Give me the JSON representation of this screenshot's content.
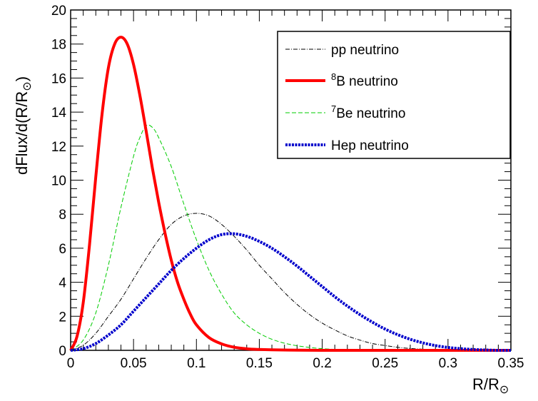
{
  "chart_data": {
    "type": "line",
    "xlabel": {
      "text": "R/R",
      "sub": "⊙"
    },
    "ylabel": {
      "text": "dFlux/d(R/R",
      "sub": "⊙",
      "suffix": ")"
    },
    "xlim": [
      0,
      0.35
    ],
    "ylim": [
      0,
      20
    ],
    "x_ticks": [
      "0",
      "0.05",
      "0.1",
      "0.15",
      "0.2",
      "0.25",
      "0.3",
      "0.35"
    ],
    "y_ticks": [
      "0",
      "2",
      "4",
      "6",
      "8",
      "10",
      "12",
      "14",
      "16",
      "18",
      "20"
    ],
    "grid": false,
    "legend_position": "top-right",
    "series": [
      {
        "name": "pp neutrino",
        "label_sup": "",
        "label_text": "pp neutrino",
        "color": "#000000",
        "style": "dash-dot",
        "x": [
          0,
          0.01,
          0.02,
          0.03,
          0.04,
          0.05,
          0.06,
          0.07,
          0.08,
          0.09,
          0.1,
          0.11,
          0.12,
          0.13,
          0.14,
          0.15,
          0.16,
          0.17,
          0.18,
          0.19,
          0.2,
          0.21,
          0.22,
          0.23,
          0.24,
          0.25,
          0.26,
          0.27,
          0.28,
          0.29,
          0.3,
          0.31,
          0.32,
          0.33,
          0.34
        ],
        "y": [
          0,
          0.3,
          1.0,
          2.0,
          3.0,
          4.2,
          5.4,
          6.5,
          7.4,
          7.9,
          8.05,
          7.9,
          7.4,
          6.7,
          5.9,
          5.0,
          4.2,
          3.4,
          2.7,
          2.1,
          1.6,
          1.2,
          0.85,
          0.6,
          0.4,
          0.28,
          0.18,
          0.11,
          0.07,
          0.04,
          0.02,
          0.01,
          0.0,
          0.0,
          0.0
        ]
      },
      {
        "name": "8B neutrino",
        "label_sup": "8",
        "label_text": "B neutrino",
        "color": "#ff0000",
        "style": "solid-thick",
        "x": [
          0,
          0.005,
          0.01,
          0.015,
          0.02,
          0.025,
          0.03,
          0.035,
          0.04,
          0.045,
          0.05,
          0.055,
          0.06,
          0.065,
          0.07,
          0.075,
          0.08,
          0.085,
          0.09,
          0.095,
          0.1,
          0.11,
          0.12,
          0.13,
          0.14,
          0.15,
          0.16,
          0.18,
          0.2,
          0.22,
          0.25,
          0.3,
          0.35
        ],
        "y": [
          0,
          0.8,
          2.8,
          6.2,
          10.2,
          13.9,
          16.6,
          18.0,
          18.4,
          18.0,
          16.8,
          15.0,
          12.9,
          10.7,
          8.7,
          6.9,
          5.3,
          4.0,
          3.0,
          2.15,
          1.5,
          0.75,
          0.38,
          0.18,
          0.09,
          0.05,
          0.03,
          0.01,
          0.0,
          0.0,
          0.0,
          0.0,
          0.0
        ]
      },
      {
        "name": "7Be neutrino",
        "label_sup": "7",
        "label_text": "Be neutrino",
        "color": "#00cc00",
        "style": "dashed",
        "x": [
          0,
          0.01,
          0.02,
          0.03,
          0.04,
          0.05,
          0.055,
          0.06,
          0.065,
          0.07,
          0.08,
          0.09,
          0.1,
          0.11,
          0.12,
          0.13,
          0.14,
          0.15,
          0.16,
          0.17,
          0.18,
          0.19,
          0.2,
          0.21,
          0.22,
          0.24,
          0.26,
          0.28,
          0.3
        ],
        "y": [
          0,
          0.6,
          2.2,
          5.0,
          8.4,
          11.4,
          12.5,
          13.2,
          13.1,
          12.5,
          10.8,
          8.6,
          6.5,
          4.7,
          3.3,
          2.2,
          1.5,
          1.0,
          0.65,
          0.42,
          0.27,
          0.17,
          0.1,
          0.06,
          0.04,
          0.01,
          0.0,
          0.0,
          0.0
        ]
      },
      {
        "name": "Hep neutrino",
        "label_sup": "",
        "label_text": "Hep neutrino",
        "color": "#0000cc",
        "style": "dotted-thick",
        "x": [
          0,
          0.01,
          0.02,
          0.03,
          0.04,
          0.05,
          0.06,
          0.07,
          0.08,
          0.09,
          0.1,
          0.11,
          0.12,
          0.13,
          0.14,
          0.15,
          0.16,
          0.17,
          0.18,
          0.19,
          0.2,
          0.21,
          0.22,
          0.23,
          0.24,
          0.25,
          0.26,
          0.27,
          0.28,
          0.29,
          0.3,
          0.31,
          0.32,
          0.33,
          0.34,
          0.35
        ],
        "y": [
          0,
          0.1,
          0.4,
          0.9,
          1.5,
          2.3,
          3.1,
          3.9,
          4.7,
          5.4,
          6.0,
          6.5,
          6.8,
          6.85,
          6.7,
          6.4,
          6.0,
          5.5,
          4.95,
          4.35,
          3.75,
          3.15,
          2.6,
          2.1,
          1.65,
          1.25,
          0.92,
          0.65,
          0.44,
          0.28,
          0.17,
          0.1,
          0.05,
          0.02,
          0.0,
          0.0
        ]
      }
    ]
  }
}
